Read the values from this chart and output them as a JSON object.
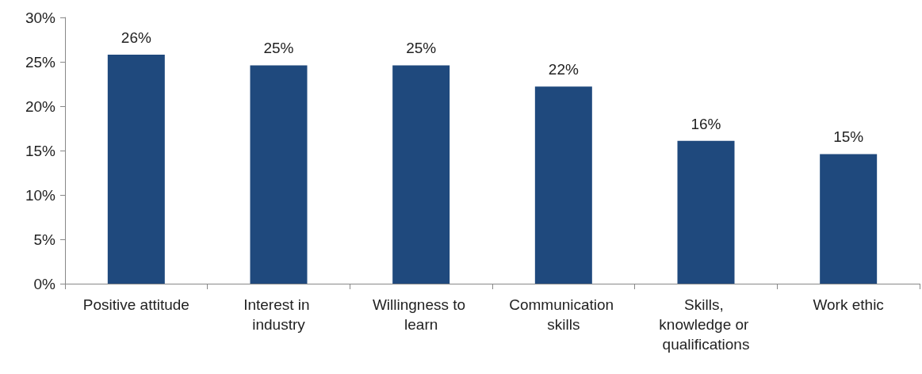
{
  "chart_data": {
    "type": "bar",
    "categories": [
      "Positive attitude",
      "Interest in industry",
      "Willingness to learn",
      "Communication skills",
      "Skills, knowledge or qualifications",
      "Work ethic"
    ],
    "values": [
      25.8,
      24.6,
      24.6,
      22.2,
      16.1,
      14.6
    ],
    "value_labels": [
      "26%",
      "25%",
      "25%",
      "22%",
      "16%",
      "15%"
    ],
    "color": "#1f497d",
    "ylim": [
      0,
      30
    ],
    "yticks": [
      {
        "value": 0,
        "label": "0%"
      },
      {
        "value": 5,
        "label": "5%"
      },
      {
        "value": 10,
        "label": "10%"
      },
      {
        "value": 15,
        "label": "15%"
      },
      {
        "value": 20,
        "label": "20%"
      },
      {
        "value": 25,
        "label": "25%"
      },
      {
        "value": 30,
        "label": "30%"
      }
    ],
    "grid": false
  }
}
